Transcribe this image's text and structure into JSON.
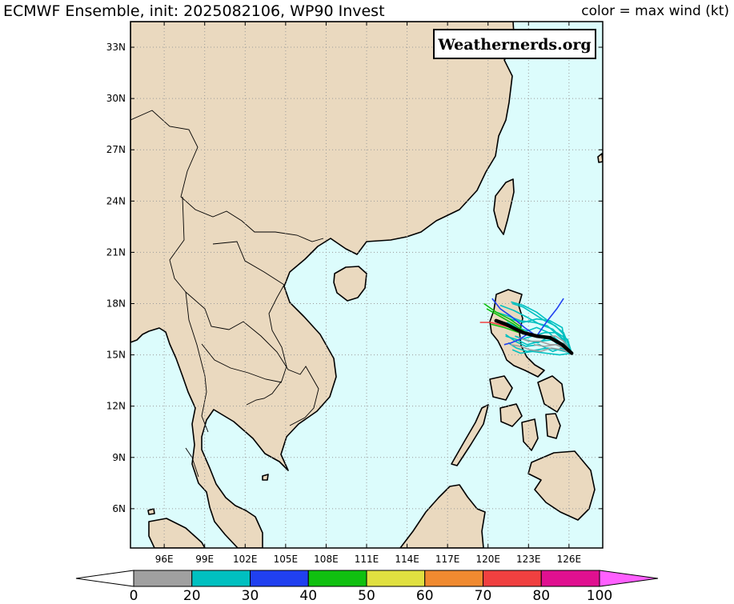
{
  "title": "ECMWF Ensemble, init: 2025082106, WP90 Invest",
  "subtitle": "color = max wind (kt)",
  "watermark": "Weathernerds.org",
  "map": {
    "lon_min": 93.5,
    "lon_max": 128.5,
    "lat_min": 3.7,
    "lat_max": 34.5,
    "colors": {
      "ocean": "#dcfcfc",
      "land": "#ead9bf",
      "coast": "#000000",
      "grid": "#9a9a9a"
    },
    "lat_ticks": [
      {
        "value": 33,
        "label": "33N"
      },
      {
        "value": 30,
        "label": "30N"
      },
      {
        "value": 27,
        "label": "27N"
      },
      {
        "value": 24,
        "label": "24N"
      },
      {
        "value": 21,
        "label": "21N"
      },
      {
        "value": 18,
        "label": "18N"
      },
      {
        "value": 15,
        "label": "15N"
      },
      {
        "value": 12,
        "label": "12N"
      },
      {
        "value": 9,
        "label": "9N"
      },
      {
        "value": 6,
        "label": "6N"
      }
    ],
    "lon_ticks": [
      {
        "value": 96,
        "label": "96E"
      },
      {
        "value": 99,
        "label": "99E"
      },
      {
        "value": 102,
        "label": "102E"
      },
      {
        "value": 105,
        "label": "105E"
      },
      {
        "value": 108,
        "label": "108E"
      },
      {
        "value": 111,
        "label": "111E"
      },
      {
        "value": 114,
        "label": "114E"
      },
      {
        "value": 117,
        "label": "117E"
      },
      {
        "value": 120,
        "label": "120E"
      },
      {
        "value": 123,
        "label": "123E"
      },
      {
        "value": 126,
        "label": "126E"
      }
    ]
  },
  "storm_tracks": {
    "ensemble_mean": [
      [
        126.2,
        15.1
      ],
      [
        125.5,
        15.6
      ],
      [
        124.6,
        16.0
      ],
      [
        123.6,
        16.1
      ],
      [
        122.6,
        16.3
      ],
      [
        121.8,
        16.6
      ],
      [
        121.3,
        16.8
      ],
      [
        120.6,
        17.0
      ]
    ],
    "members": [
      {
        "color": "#00c0c0",
        "points": [
          [
            126.2,
            15.1
          ],
          [
            125.8,
            15.6
          ],
          [
            125.6,
            16.2
          ],
          [
            125.0,
            16.7
          ],
          [
            124.2,
            17.0
          ],
          [
            123.4,
            17.4
          ],
          [
            122.6,
            17.8
          ],
          [
            121.8,
            18.0
          ]
        ]
      },
      {
        "color": "#00c0c0",
        "points": [
          [
            126.2,
            15.1
          ],
          [
            125.6,
            15.9
          ],
          [
            124.8,
            16.5
          ],
          [
            123.8,
            16.8
          ],
          [
            122.9,
            17.2
          ],
          [
            121.9,
            17.6
          ],
          [
            120.9,
            17.9
          ]
        ]
      },
      {
        "color": "#00c0c0",
        "points": [
          [
            126.2,
            15.1
          ],
          [
            125.7,
            15.5
          ],
          [
            125.5,
            16.6
          ],
          [
            124.6,
            17.0
          ],
          [
            123.6,
            17.1
          ],
          [
            122.6,
            16.9
          ],
          [
            121.6,
            17.1
          ]
        ]
      },
      {
        "color": "#00c0c0",
        "points": [
          [
            126.2,
            15.1
          ],
          [
            125.2,
            15.3
          ],
          [
            124.4,
            15.4
          ],
          [
            123.7,
            15.3
          ],
          [
            122.9,
            15.2
          ],
          [
            122.1,
            15.4
          ],
          [
            121.5,
            15.7
          ]
        ]
      },
      {
        "color": "#00c0c0",
        "points": [
          [
            126.2,
            15.1
          ],
          [
            125.5,
            15.4
          ],
          [
            124.8,
            15.2
          ],
          [
            123.8,
            15.6
          ],
          [
            122.8,
            15.5
          ],
          [
            122.0,
            15.8
          ],
          [
            121.3,
            16.2
          ]
        ]
      },
      {
        "color": "#00c0c0",
        "points": [
          [
            126.2,
            15.1
          ],
          [
            125.4,
            15.7
          ],
          [
            124.5,
            16.3
          ],
          [
            123.6,
            16.6
          ],
          [
            122.9,
            16.4
          ],
          [
            122.2,
            16.6
          ],
          [
            121.4,
            16.9
          ]
        ]
      },
      {
        "color": "#00c0c0",
        "points": [
          [
            126.2,
            15.1
          ],
          [
            125.9,
            15.9
          ],
          [
            125.1,
            16.3
          ],
          [
            124.2,
            16.3
          ],
          [
            123.3,
            16.1
          ],
          [
            122.4,
            15.9
          ]
        ]
      },
      {
        "color": "#00c0c0",
        "points": [
          [
            126.2,
            15.1
          ],
          [
            125.3,
            15.0
          ],
          [
            124.3,
            15.1
          ],
          [
            123.3,
            15.2
          ],
          [
            122.4,
            15.1
          ],
          [
            121.8,
            15.3
          ]
        ]
      },
      {
        "color": "#00c0c0",
        "points": [
          [
            126.2,
            15.1
          ],
          [
            125.6,
            16.3
          ],
          [
            124.6,
            16.9
          ],
          [
            123.6,
            17.5
          ],
          [
            122.6,
            17.9
          ],
          [
            121.7,
            18.1
          ]
        ]
      },
      {
        "color": "#00c0c0",
        "points": [
          [
            126.2,
            15.1
          ],
          [
            124.9,
            15.9
          ],
          [
            123.9,
            15.8
          ],
          [
            122.9,
            15.6
          ],
          [
            122.1,
            15.9
          ],
          [
            121.3,
            16.1
          ]
        ]
      },
      {
        "color": "#00c0c0",
        "points": [
          [
            126.2,
            15.1
          ],
          [
            125.4,
            16.0
          ],
          [
            124.4,
            16.7
          ],
          [
            123.4,
            16.9
          ],
          [
            122.4,
            17.0
          ],
          [
            121.4,
            17.3
          ],
          [
            120.6,
            17.5
          ]
        ]
      },
      {
        "color": "#00c0c0",
        "points": [
          [
            126.2,
            15.1
          ],
          [
            125.6,
            15.3
          ],
          [
            124.9,
            15.8
          ],
          [
            124.4,
            16.0
          ],
          [
            123.7,
            15.7
          ],
          [
            122.7,
            15.9
          ],
          [
            122.0,
            16.1
          ]
        ]
      },
      {
        "color": "#a0a0a0",
        "points": [
          [
            126.2,
            15.1
          ],
          [
            125.5,
            15.3
          ],
          [
            124.7,
            15.4
          ],
          [
            123.9,
            15.2
          ],
          [
            123.1,
            15.3
          ],
          [
            122.4,
            15.5
          ],
          [
            121.7,
            15.6
          ]
        ]
      },
      {
        "color": "#a0a0a0",
        "points": [
          [
            126.2,
            15.1
          ],
          [
            125.3,
            15.6
          ],
          [
            124.6,
            15.6
          ],
          [
            123.8,
            15.8
          ],
          [
            123.0,
            15.8
          ],
          [
            122.3,
            16.0
          ]
        ]
      },
      {
        "color": "#a0a0a0",
        "points": [
          [
            126.2,
            15.1
          ],
          [
            125.6,
            15.4
          ],
          [
            125.0,
            15.6
          ],
          [
            124.2,
            15.5
          ],
          [
            123.4,
            15.6
          ]
        ]
      },
      {
        "color": "#a0a0a0",
        "points": [
          [
            126.2,
            15.1
          ],
          [
            125.6,
            15.8
          ],
          [
            125.0,
            16.1
          ],
          [
            124.6,
            16.1
          ]
        ]
      },
      {
        "color": "#2040f0",
        "points": [
          [
            126.2,
            15.1
          ],
          [
            125.5,
            15.6
          ],
          [
            124.6,
            16.0
          ],
          [
            123.6,
            16.1
          ],
          [
            122.7,
            16.6
          ],
          [
            121.8,
            17.2
          ],
          [
            120.9,
            17.7
          ],
          [
            120.3,
            18.3
          ]
        ]
      },
      {
        "color": "#2040f0",
        "points": [
          [
            123.6,
            16.1
          ],
          [
            124.4,
            17.0
          ],
          [
            125.1,
            17.7
          ],
          [
            125.6,
            18.3
          ]
        ]
      },
      {
        "color": "#2040f0",
        "points": [
          [
            122.9,
            16.2
          ],
          [
            122.3,
            15.9
          ],
          [
            121.7,
            15.7
          ],
          [
            121.2,
            15.6
          ]
        ]
      },
      {
        "color": "#10c010",
        "points": [
          [
            122.8,
            16.3
          ],
          [
            121.9,
            16.8
          ],
          [
            120.8,
            17.3
          ],
          [
            119.9,
            17.7
          ]
        ]
      },
      {
        "color": "#10c010",
        "points": [
          [
            122.5,
            16.6
          ],
          [
            121.6,
            17.1
          ],
          [
            120.6,
            17.5
          ],
          [
            119.7,
            18.0
          ]
        ]
      },
      {
        "color": "#10c010",
        "points": [
          [
            122.3,
            16.3
          ],
          [
            121.2,
            16.6
          ],
          [
            120.2,
            16.8
          ]
        ]
      },
      {
        "color": "#f04040",
        "points": [
          [
            122.2,
            16.5
          ],
          [
            121.2,
            16.7
          ],
          [
            120.2,
            16.9
          ],
          [
            119.4,
            16.9
          ]
        ]
      }
    ]
  },
  "colorbar": {
    "segments": [
      {
        "from": 0,
        "to": 20,
        "color": "#a0a0a0"
      },
      {
        "from": 20,
        "to": 30,
        "color": "#00c0c0"
      },
      {
        "from": 30,
        "to": 40,
        "color": "#2040f0"
      },
      {
        "from": 40,
        "to": 50,
        "color": "#10c010"
      },
      {
        "from": 50,
        "to": 60,
        "color": "#e0e040"
      },
      {
        "from": 60,
        "to": 70,
        "color": "#f08a30"
      },
      {
        "from": 70,
        "to": 80,
        "color": "#f04040"
      },
      {
        "from": 80,
        "to": 100,
        "color": "#e01090"
      }
    ],
    "below_color": "#ffffff",
    "above_color": "#ff60ff",
    "tick_labels": [
      "0",
      "20",
      "30",
      "40",
      "50",
      "60",
      "70",
      "80",
      "100"
    ]
  }
}
